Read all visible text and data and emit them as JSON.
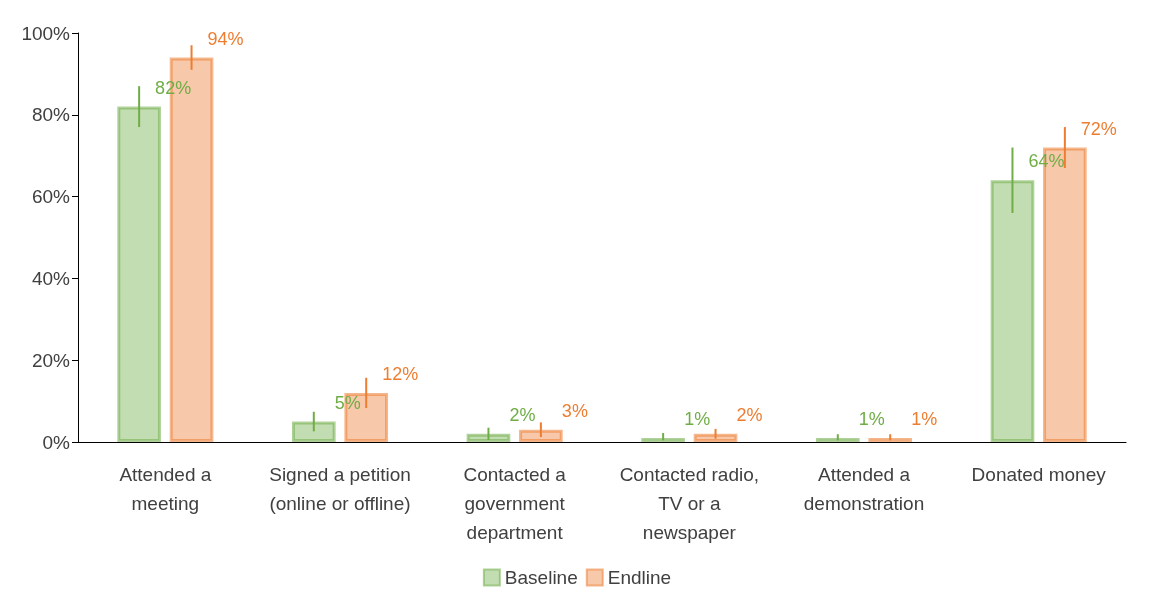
{
  "chart_data": {
    "type": "bar",
    "categories": [
      "Attended a\nmeeting",
      "Signed a petition\n(online or offline)",
      "Contacted a\ngovernment\ndepartment",
      "Contacted radio,\nTV or a\nnewspaper",
      "Attended a\ndemonstration",
      "Donated money"
    ],
    "series": [
      {
        "name": "Baseline",
        "color": "#70ad47",
        "values": [
          82,
          5,
          2,
          1,
          1,
          64
        ],
        "errors": [
          5,
          2.4,
          1.5,
          [
            0.4,
            2.2
          ],
          [
            0.4,
            1.9
          ],
          8
        ],
        "value_labels": [
          "82%",
          "5%",
          "2%",
          "1%",
          "1%",
          "64%"
        ]
      },
      {
        "name": "Endline",
        "color": "#ed7d31",
        "values": [
          94,
          12,
          3,
          2,
          1,
          72
        ],
        "errors": [
          3,
          3.7,
          1.8,
          1.2,
          [
            0.4,
            1.9
          ],
          5
        ],
        "value_labels": [
          "94%",
          "12%",
          "3%",
          "2%",
          "1%",
          "72%"
        ]
      }
    ],
    "ylim": [
      0,
      100
    ],
    "yticks": [
      {
        "value": 0,
        "label": "0%"
      },
      {
        "value": 20,
        "label": "20%"
      },
      {
        "value": 40,
        "label": "40%"
      },
      {
        "value": 60,
        "label": "60%"
      },
      {
        "value": 80,
        "label": "80%"
      },
      {
        "value": 100,
        "label": "100%"
      }
    ],
    "legend": "bottom",
    "grid": false
  }
}
